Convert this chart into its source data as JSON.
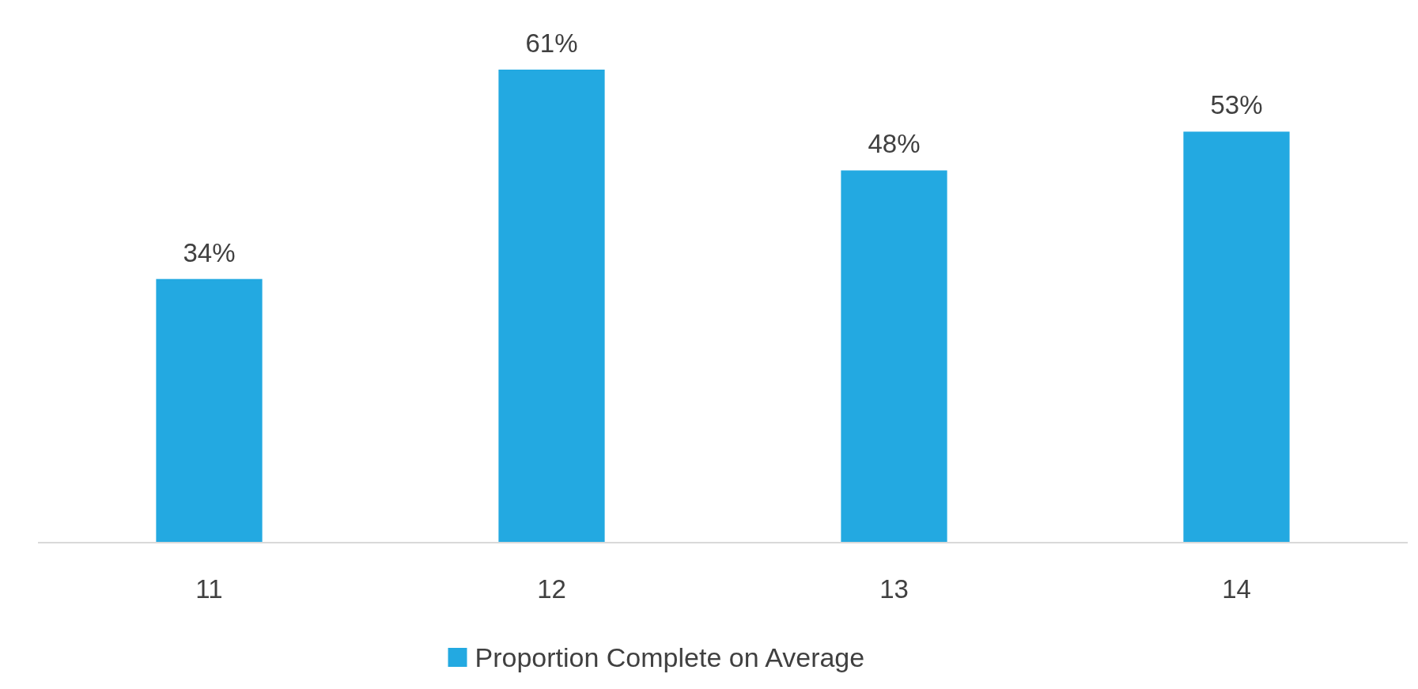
{
  "chart_data": {
    "type": "bar",
    "categories": [
      "11",
      "12",
      "13",
      "14"
    ],
    "series": [
      {
        "name": "Proportion Complete on Average",
        "color": "#23a9e1",
        "values": [
          34,
          61,
          48,
          53
        ],
        "value_labels": [
          "34%",
          "61%",
          "48%",
          "53%"
        ]
      }
    ],
    "legend": "bottom"
  }
}
